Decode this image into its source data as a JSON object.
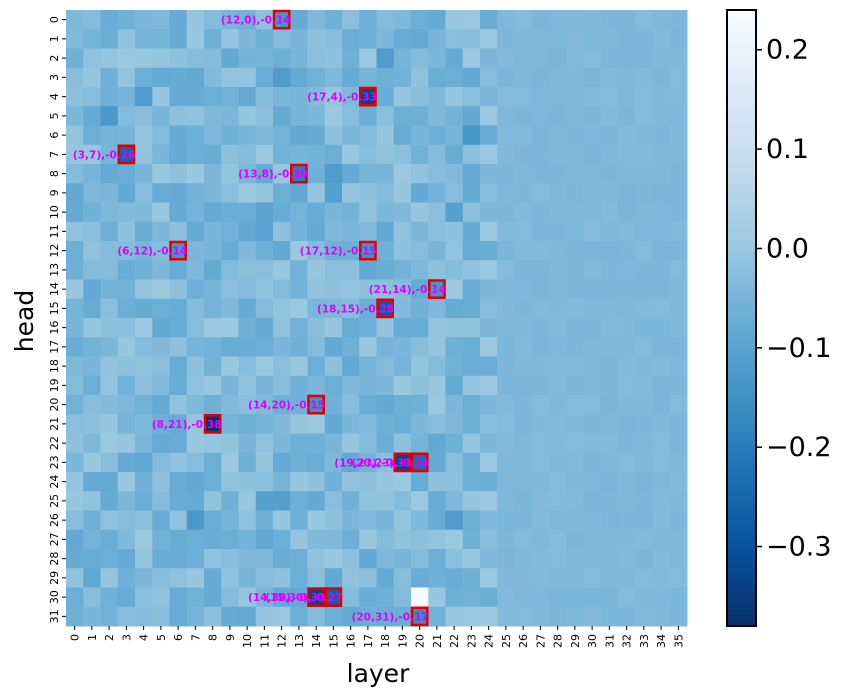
{
  "chart_data": {
    "type": "heatmap",
    "title": "",
    "xlabel": "layer",
    "ylabel": "head",
    "x_categories": [
      "0",
      "1",
      "2",
      "3",
      "4",
      "5",
      "6",
      "7",
      "8",
      "9",
      "10",
      "11",
      "12",
      "13",
      "14",
      "15",
      "16",
      "17",
      "18",
      "19",
      "20",
      "21",
      "22",
      "23",
      "24",
      "25",
      "26",
      "27",
      "28",
      "29",
      "30",
      "31",
      "32",
      "33",
      "34",
      "35"
    ],
    "y_categories": [
      "0",
      "1",
      "2",
      "3",
      "4",
      "5",
      "6",
      "7",
      "8",
      "9",
      "10",
      "11",
      "12",
      "13",
      "14",
      "15",
      "16",
      "17",
      "18",
      "19",
      "20",
      "21",
      "22",
      "23",
      "24",
      "25",
      "26",
      "27",
      "28",
      "29",
      "30",
      "31"
    ],
    "colorbar": {
      "colormap": "Blues_r",
      "min": -0.38,
      "max": 0.24,
      "ticks": [
        0.2,
        0.1,
        0.0,
        -0.1,
        -0.2,
        -0.3
      ],
      "tick_labels": [
        "0.2",
        "0.1",
        "0.0",
        "−0.1",
        "−0.2",
        "−0.3"
      ]
    },
    "highlighted_cells": [
      {
        "layer": 12,
        "head": 0,
        "value": -0.14,
        "label": "(12,0),-0.14"
      },
      {
        "layer": 17,
        "head": 4,
        "value": -0.33,
        "label": "(17,4),-0.33"
      },
      {
        "layer": 3,
        "head": 7,
        "value": -0.26,
        "label": "(3,7),-0.26"
      },
      {
        "layer": 13,
        "head": 8,
        "value": -0.2,
        "label": "(13,8),-0.20"
      },
      {
        "layer": 6,
        "head": 12,
        "value": -0.14,
        "label": "(6,12),-0.14"
      },
      {
        "layer": 17,
        "head": 12,
        "value": -0.15,
        "label": "(17,12),-0.15"
      },
      {
        "layer": 21,
        "head": 14,
        "value": -0.14,
        "label": "(21,14),-0.14"
      },
      {
        "layer": 18,
        "head": 15,
        "value": -0.28,
        "label": "(18,15),-0.28"
      },
      {
        "layer": 14,
        "head": 20,
        "value": -0.15,
        "label": "(14,20),-0.15"
      },
      {
        "layer": 8,
        "head": 21,
        "value": -0.38,
        "label": "(8,21),-0.38"
      },
      {
        "layer": 19,
        "head": 23,
        "value": -0.33,
        "label": "(19,23),-0.33"
      },
      {
        "layer": 20,
        "head": 23,
        "value": -0.24,
        "label": "(20,23),-0.24"
      },
      {
        "layer": 14,
        "head": 30,
        "value": -0.33,
        "label": "(14,30),-0.33"
      },
      {
        "layer": 15,
        "head": 30,
        "value": -0.27,
        "label": "(15,30),-0.27"
      },
      {
        "layer": 20,
        "head": 31,
        "value": -0.17,
        "label": "(20,31),-0.17"
      }
    ],
    "notable_cells": [
      {
        "layer": 20,
        "head": 30,
        "value": 0.24
      },
      {
        "layer": 12,
        "head": 3,
        "value": -0.12
      },
      {
        "layer": 4,
        "head": 4,
        "value": -0.12
      },
      {
        "layer": 2,
        "head": 5,
        "value": -0.13
      },
      {
        "layer": 23,
        "head": 6,
        "value": -0.14
      },
      {
        "layer": 15,
        "head": 8,
        "value": -0.12
      },
      {
        "layer": 15,
        "head": 9,
        "value": -0.11
      },
      {
        "layer": 11,
        "head": 10,
        "value": -0.1
      },
      {
        "layer": 22,
        "head": 10,
        "value": -0.11
      },
      {
        "layer": 11,
        "head": 11,
        "value": -0.1
      },
      {
        "layer": 18,
        "head": 2,
        "value": -0.12
      },
      {
        "layer": 11,
        "head": 25,
        "value": -0.11
      },
      {
        "layer": 12,
        "head": 25,
        "value": -0.11
      },
      {
        "layer": 7,
        "head": 26,
        "value": -0.13
      },
      {
        "layer": 22,
        "head": 26,
        "value": -0.12
      },
      {
        "layer": 1,
        "head": 29,
        "value": -0.09
      },
      {
        "layer": 11,
        "head": 27,
        "value": -0.09
      },
      {
        "layer": 13,
        "head": 30,
        "value": -0.08
      }
    ],
    "baseline_value": -0.04,
    "grid": false,
    "legend": "colorbar-right"
  }
}
